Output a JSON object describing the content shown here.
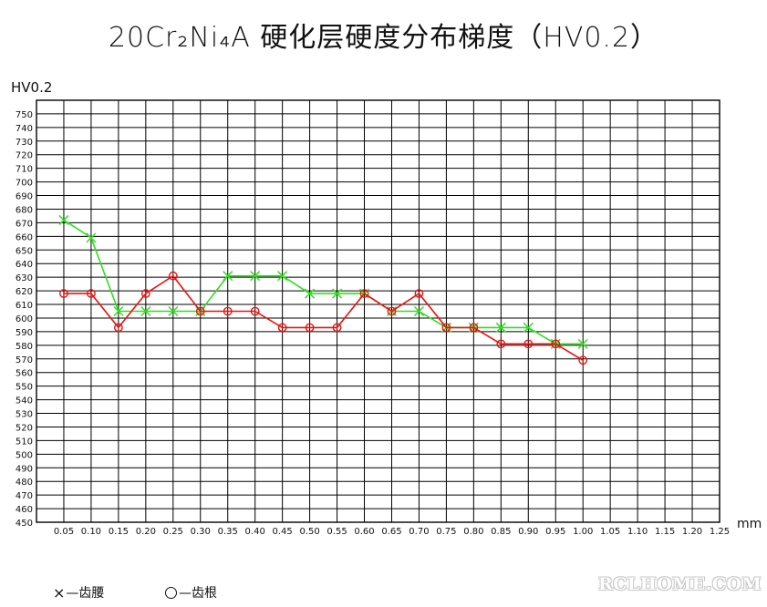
{
  "title": "20Cr₂Ni₄A 硬化层硬度分布梯度（HV0.2）",
  "legend": {
    "flank_symbol": "×",
    "flank_label": "—齿腰",
    "root_label": "—齿根"
  },
  "watermark": "RCLHOME.COM",
  "colors": {
    "flank": "#33dd22",
    "root": "#ee1111",
    "grid": "#000000"
  },
  "chart_data": {
    "type": "line",
    "title": "20Cr₂Ni₄A 硬化层硬度分布梯度（HV0.2）",
    "ylabel": "HV0.2",
    "xlabel": "mm",
    "xlim": [
      0,
      1.25
    ],
    "ylim": [
      450,
      760
    ],
    "grid": true,
    "x_ticks": [
      "0.05",
      "0.10",
      "0.15",
      "0.20",
      "0.25",
      "0.30",
      "0.35",
      "0.40",
      "0.45",
      "0.50",
      "0.55",
      "0.60",
      "0.65",
      "0.70",
      "0.75",
      "0.80",
      "0.85",
      "0.90",
      "0.95",
      "1.00",
      "1.05",
      "1.10",
      "1.15",
      "1.20",
      "1.25"
    ],
    "y_ticks": [
      450,
      460,
      470,
      480,
      490,
      500,
      510,
      520,
      530,
      540,
      550,
      560,
      570,
      580,
      590,
      600,
      610,
      620,
      630,
      640,
      650,
      660,
      670,
      680,
      690,
      700,
      710,
      720,
      730,
      740,
      750
    ],
    "x": [
      0.05,
      0.1,
      0.15,
      0.2,
      0.25,
      0.3,
      0.35,
      0.4,
      0.45,
      0.5,
      0.55,
      0.6,
      0.65,
      0.7,
      0.75,
      0.8,
      0.85,
      0.9,
      0.95,
      1.0
    ],
    "series": [
      {
        "name": "齿腰",
        "marker": "x",
        "color": "#33dd22",
        "values": [
          672,
          659,
          605,
          605,
          605,
          605,
          631,
          631,
          631,
          618,
          618,
          618,
          605,
          605,
          593,
          593,
          593,
          593,
          581,
          581
        ]
      },
      {
        "name": "齿根",
        "marker": "o",
        "color": "#ee1111",
        "values": [
          618,
          618,
          593,
          618,
          631,
          605,
          605,
          605,
          593,
          593,
          593,
          618,
          605,
          618,
          593,
          593,
          581,
          581,
          581,
          569
        ]
      }
    ]
  }
}
